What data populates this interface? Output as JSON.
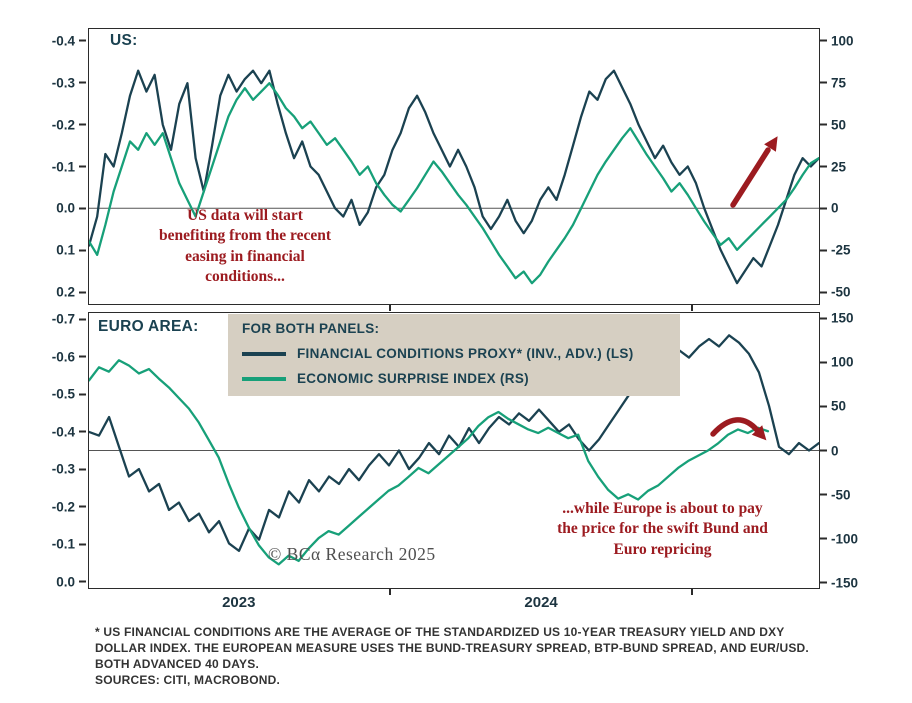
{
  "colors": {
    "dark_line": "#1b4251",
    "green_line": "#17a079",
    "annotation_red": "#9c1b20",
    "legend_bg": "#d6cfc2",
    "axis": "#2b2b2b",
    "zero_line": "#555555",
    "tick_text": "#1c3440",
    "watermark": "#4f4f4f",
    "footnote_text": "#333333"
  },
  "top_panel": {
    "label": "US:",
    "annotation": "US data will start\nbenefiting from the recent\neasing in financial\nconditions..."
  },
  "bottom_panel": {
    "label": "EURO AREA:",
    "annotation": "...while Europe is about to pay\nthe price for the swift Bund and\nEuro repricing",
    "watermark": "© BCα Research 2025"
  },
  "legend": {
    "title": "FOR BOTH PANELS:",
    "items": [
      {
        "label": "FINANCIAL CONDITIONS PROXY* (INV., ADV.) (LS)",
        "color_key": "dark_line"
      },
      {
        "label": "ECONOMIC SURPRISE INDEX (RS)",
        "color_key": "green_line"
      }
    ]
  },
  "x_axis": {
    "year_labels": [
      {
        "text": "2023",
        "t": 0.206
      },
      {
        "text": "2024",
        "t": 0.619
      }
    ],
    "tick_t": [
      0.413,
      0.825
    ]
  },
  "footnote": {
    "lines": [
      "* US FINANCIAL CONDITIONS ARE THE AVERAGE OF THE STANDARDIZED US 10-YEAR TREASURY YIELD AND DXY",
      "DOLLAR INDEX. THE EUROPEAN MEASURE USES THE BUND-TREASURY SPREAD, BTP-BUND SPREAD, AND EUR/USD.",
      "BOTH ADVANCED 40 DAYS.",
      "SOURCES: CITI, MACROBOND."
    ]
  },
  "chart_data": {
    "type": "line",
    "x_domain": {
      "start": "2023-01",
      "end": "2025-05",
      "year_boundaries_t": [
        0.0,
        0.413,
        0.825
      ]
    },
    "panels": [
      {
        "id": "us",
        "title": "US:",
        "left_axis": {
          "top": -0.43,
          "bottom": 0.23,
          "ticks": [
            -0.4,
            -0.3,
            -0.2,
            -0.1,
            0,
            0.1,
            0.2
          ],
          "format": "fixed1"
        },
        "right_axis": {
          "top": 107.5,
          "bottom": -57.5,
          "ticks": [
            100,
            75,
            50,
            25,
            0,
            -25,
            -50
          ],
          "format": "int"
        },
        "series": [
          {
            "name": "FINANCIAL CONDITIONS PROXY* (INV., ADV.) (LS)",
            "axis": "left",
            "color_key": "dark_line",
            "values": [
              0.09,
              0.02,
              -0.13,
              -0.1,
              -0.18,
              -0.27,
              -0.33,
              -0.28,
              -0.32,
              -0.2,
              -0.14,
              -0.25,
              -0.3,
              -0.12,
              -0.04,
              -0.15,
              -0.27,
              -0.32,
              -0.28,
              -0.31,
              -0.33,
              -0.3,
              -0.33,
              -0.25,
              -0.18,
              -0.12,
              -0.16,
              -0.1,
              -0.08,
              -0.04,
              0.0,
              0.02,
              -0.02,
              0.04,
              0.01,
              -0.05,
              -0.08,
              -0.14,
              -0.18,
              -0.24,
              -0.27,
              -0.23,
              -0.18,
              -0.14,
              -0.1,
              -0.14,
              -0.1,
              -0.05,
              0.02,
              0.05,
              0.02,
              -0.02,
              0.03,
              0.06,
              0.03,
              -0.02,
              -0.05,
              -0.02,
              -0.08,
              -0.15,
              -0.22,
              -0.28,
              -0.26,
              -0.31,
              -0.33,
              -0.29,
              -0.25,
              -0.2,
              -0.16,
              -0.12,
              -0.15,
              -0.11,
              -0.08,
              -0.1,
              -0.06,
              0.0,
              0.05,
              0.1,
              0.14,
              0.18,
              0.15,
              0.12,
              0.14,
              0.09,
              0.04,
              -0.02,
              -0.08,
              -0.12,
              -0.1,
              -0.12
            ]
          },
          {
            "name": "ECONOMIC SURPRISE INDEX (RS)",
            "axis": "right",
            "color_key": "green_line",
            "values": [
              -20,
              -28,
              -10,
              10,
              25,
              40,
              35,
              45,
              38,
              45,
              30,
              15,
              5,
              -5,
              10,
              25,
              40,
              55,
              65,
              72,
              65,
              70,
              75,
              68,
              60,
              55,
              48,
              52,
              45,
              38,
              42,
              35,
              28,
              20,
              25,
              15,
              8,
              2,
              -2,
              5,
              12,
              20,
              28,
              22,
              15,
              8,
              2,
              -5,
              -12,
              -20,
              -28,
              -35,
              -42,
              -38,
              -45,
              -40,
              -32,
              -25,
              -18,
              -10,
              0,
              10,
              20,
              28,
              35,
              42,
              48,
              40,
              32,
              25,
              18,
              10,
              15,
              8,
              0,
              -8,
              -15,
              -22,
              -18,
              -25,
              -20,
              -15,
              -10,
              -5,
              0,
              5,
              12,
              20,
              27,
              30
            ]
          }
        ]
      },
      {
        "id": "euro",
        "title": "EURO AREA:",
        "left_axis": {
          "top": -0.72,
          "bottom": 0.02,
          "ticks": [
            -0.7,
            -0.6,
            -0.5,
            -0.4,
            -0.3,
            -0.2,
            -0.1,
            0
          ],
          "format": "fixed1"
        },
        "right_axis": {
          "top": 157,
          "bottom": -157,
          "ticks": [
            150,
            100,
            50,
            0,
            -50,
            -100,
            -150
          ],
          "format": "int"
        },
        "series": [
          {
            "name": "FINANCIAL CONDITIONS PROXY* (INV., ADV.) (LS)",
            "axis": "left",
            "color_key": "dark_line",
            "values": [
              -0.4,
              -0.39,
              -0.44,
              -0.36,
              -0.28,
              -0.3,
              -0.24,
              -0.26,
              -0.19,
              -0.21,
              -0.16,
              -0.18,
              -0.13,
              -0.16,
              -0.1,
              -0.08,
              -0.14,
              -0.11,
              -0.19,
              -0.17,
              -0.24,
              -0.21,
              -0.27,
              -0.24,
              -0.28,
              -0.26,
              -0.3,
              -0.27,
              -0.31,
              -0.34,
              -0.31,
              -0.35,
              -0.3,
              -0.33,
              -0.37,
              -0.34,
              -0.39,
              -0.36,
              -0.41,
              -0.37,
              -0.41,
              -0.44,
              -0.42,
              -0.45,
              -0.43,
              -0.46,
              -0.43,
              -0.4,
              -0.42,
              -0.38,
              -0.35,
              -0.38,
              -0.42,
              -0.46,
              -0.5,
              -0.53,
              -0.55,
              -0.58,
              -0.6,
              -0.62,
              -0.6,
              -0.63,
              -0.65,
              -0.63,
              -0.66,
              -0.64,
              -0.61,
              -0.56,
              -0.47,
              -0.36,
              -0.34,
              -0.37,
              -0.35,
              -0.37
            ]
          },
          {
            "name": "ECONOMIC SURPRISE INDEX (RS)",
            "axis": "right",
            "color_key": "green_line",
            "t1": 0.93,
            "values": [
              80,
              95,
              90,
              103,
              97,
              88,
              93,
              82,
              72,
              60,
              48,
              32,
              12,
              -8,
              -38,
              -65,
              -88,
              -108,
              -122,
              -130,
              -120,
              -126,
              -112,
              -100,
              -92,
              -96,
              -86,
              -76,
              -66,
              -56,
              -46,
              -40,
              -30,
              -20,
              -26,
              -16,
              -6,
              4,
              14,
              28,
              38,
              44,
              36,
              30,
              24,
              20,
              26,
              20,
              14,
              18,
              -12,
              -30,
              -45,
              -55,
              -50,
              -56,
              -46,
              -40,
              -30,
              -20,
              -12,
              -6,
              0,
              8,
              18,
              24,
              20,
              26,
              22
            ]
          }
        ]
      }
    ]
  }
}
